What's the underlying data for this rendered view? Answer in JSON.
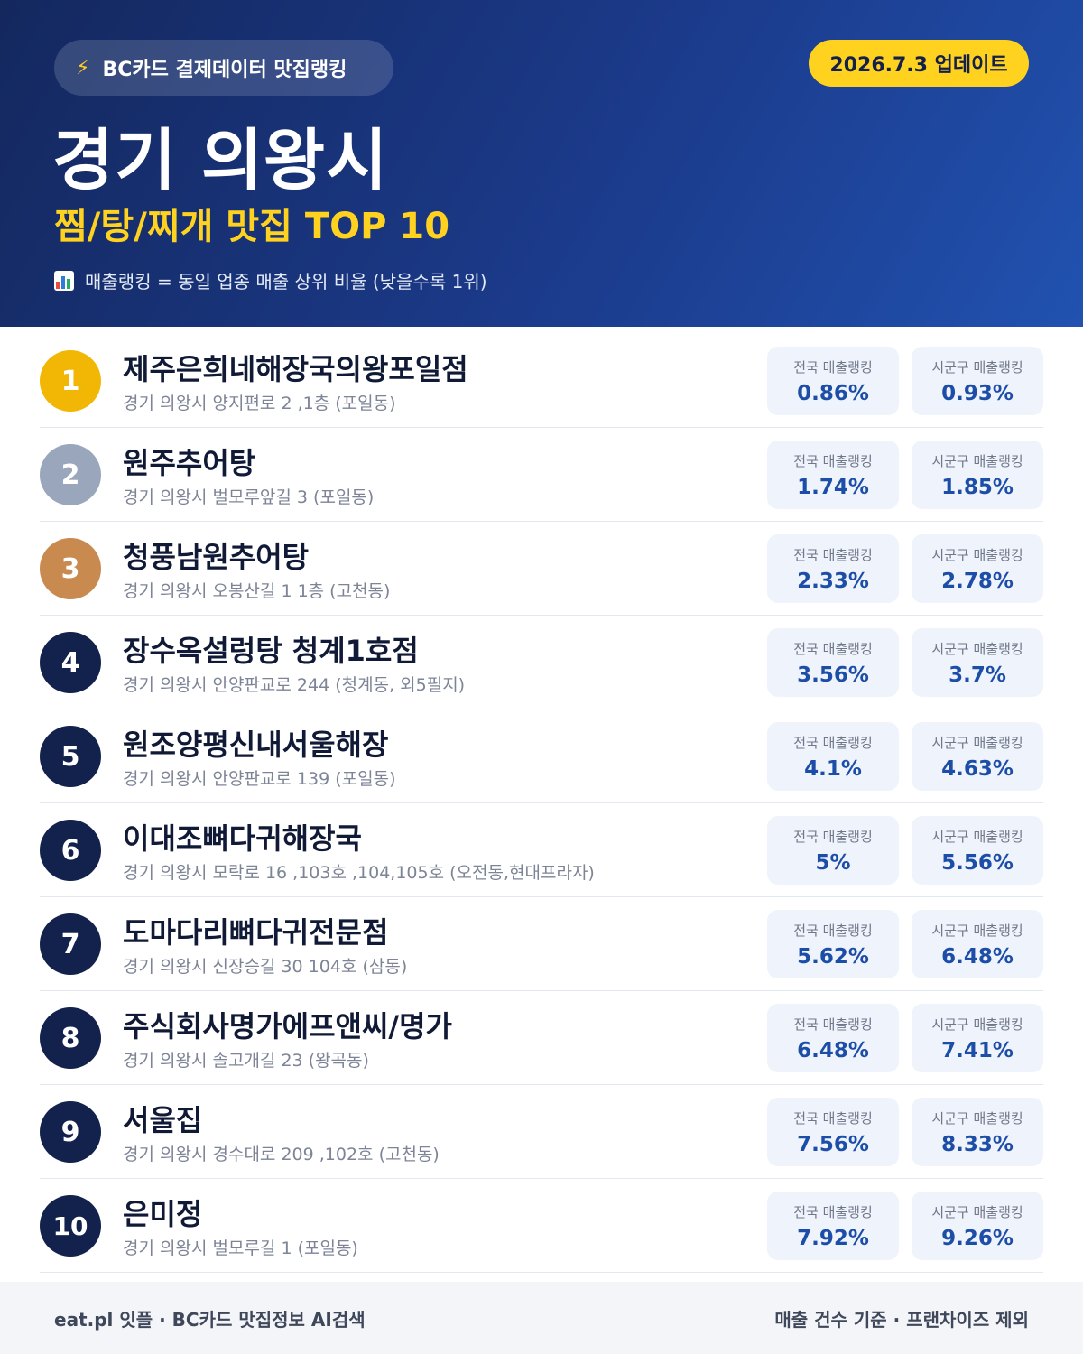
{
  "header": {
    "source_label": "BC카드 결제데이터 맛집랭킹",
    "update_label": "2026.7.3 업데이트",
    "city": "경기 의왕시",
    "subtitle": "찜/탕/찌개 맛집 TOP 10",
    "legend": "매출랭킹 = 동일 업종 매출 상위 비율 (낮을수록 1위)"
  },
  "labels": {
    "national": "전국 매출랭킹",
    "regional": "시군구 매출랭킹"
  },
  "colors": {
    "rank1": "#F2B705",
    "rank2": "#9AA6BC",
    "rank3": "#C98A4F",
    "rank_default": "#13214D",
    "accent": "#FFD21F",
    "value": "#1D4EA7"
  },
  "restaurants": [
    {
      "rank": "1",
      "name": "제주은희네해장국의왕포일점",
      "address": "경기 의왕시 양지편로 2 ,1층 (포일동)",
      "national": "0.86%",
      "regional": "0.93%"
    },
    {
      "rank": "2",
      "name": "원주추어탕",
      "address": "경기 의왕시 벌모루앞길 3 (포일동)",
      "national": "1.74%",
      "regional": "1.85%"
    },
    {
      "rank": "3",
      "name": "청풍남원추어탕",
      "address": "경기 의왕시 오봉산길 1 1층 (고천동)",
      "national": "2.33%",
      "regional": "2.78%"
    },
    {
      "rank": "4",
      "name": "장수옥설렁탕 청계1호점",
      "address": "경기 의왕시 안양판교로 244 (청계동, 외5필지)",
      "national": "3.56%",
      "regional": "3.7%"
    },
    {
      "rank": "5",
      "name": "원조양평신내서울해장",
      "address": "경기 의왕시 안양판교로 139 (포일동)",
      "national": "4.1%",
      "regional": "4.63%"
    },
    {
      "rank": "6",
      "name": "이대조뼈다귀해장국",
      "address": "경기 의왕시 모락로 16 ,103호 ,104,105호 (오전동,현대프라자)",
      "national": "5%",
      "regional": "5.56%"
    },
    {
      "rank": "7",
      "name": "도마다리뼈다귀전문점",
      "address": "경기 의왕시 신장승길 30 104호 (삼동)",
      "national": "5.62%",
      "regional": "6.48%"
    },
    {
      "rank": "8",
      "name": "주식회사명가에프앤씨/명가",
      "address": "경기 의왕시 솔고개길 23 (왕곡동)",
      "national": "6.48%",
      "regional": "7.41%"
    },
    {
      "rank": "9",
      "name": "서울집",
      "address": "경기 의왕시 경수대로 209 ,102호 (고천동)",
      "national": "7.56%",
      "regional": "8.33%"
    },
    {
      "rank": "10",
      "name": "은미정",
      "address": "경기 의왕시 벌모루길 1 (포일동)",
      "national": "7.92%",
      "regional": "9.26%"
    }
  ],
  "footer": {
    "left": "eat.pl 잇플 · BC카드 맛집정보 AI검색",
    "right": "매출 건수 기준 · 프랜차이즈 제외"
  }
}
